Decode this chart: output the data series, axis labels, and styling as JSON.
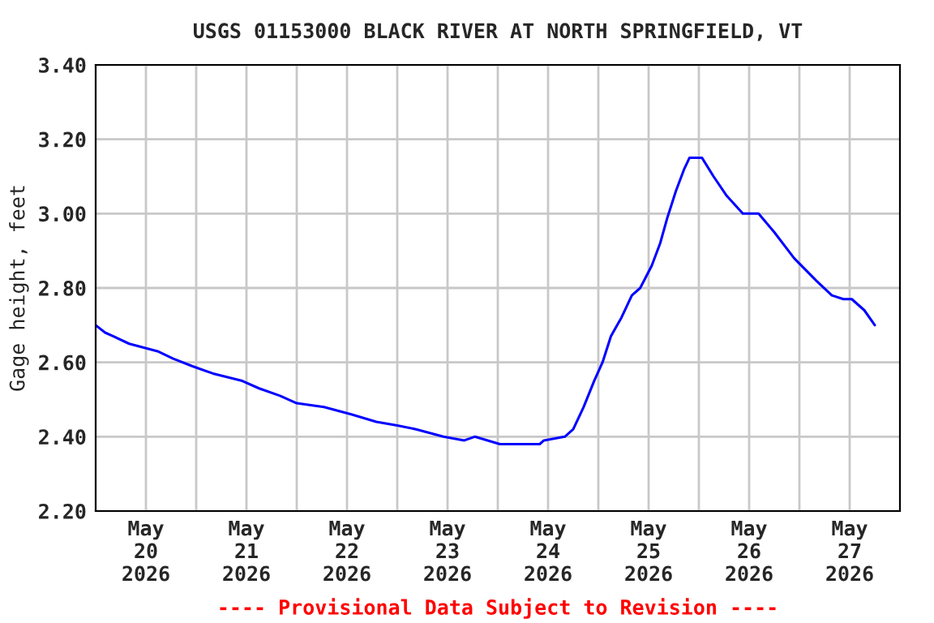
{
  "chart_data": {
    "type": "line",
    "title": "USGS 01153000 BLACK RIVER AT NORTH SPRINGFIELD, VT",
    "ylabel": "Gage height, feet",
    "annotations": [
      "---- Provisional Data Subject to Revision ----"
    ],
    "x": [
      "2026-05-20T00:00",
      "2026-05-20T02:15",
      "2026-05-20T04:15",
      "2026-05-20T08:00",
      "2026-05-20T14:45",
      "2026-05-20T18:30",
      "2026-05-20T23:00",
      "2026-05-21T04:00",
      "2026-05-21T11:00",
      "2026-05-21T15:00",
      "2026-05-21T20:00",
      "2026-05-22T00:00",
      "2026-05-22T06:30",
      "2026-05-22T13:00",
      "2026-05-22T19:00",
      "2026-05-23T00:00",
      "2026-05-23T04:30",
      "2026-05-23T11:00",
      "2026-05-23T16:00",
      "2026-05-23T18:30",
      "2026-05-24T00:30",
      "2026-05-24T10:00",
      "2026-05-24T11:00",
      "2026-05-24T16:00",
      "2026-05-24T18:00",
      "2026-05-24T20:30",
      "2026-05-24T23:00",
      "2026-05-25T01:00",
      "2026-05-25T03:00",
      "2026-05-25T05:30",
      "2026-05-25T08:00",
      "2026-05-25T10:00",
      "2026-05-25T12:45",
      "2026-05-25T14:45",
      "2026-05-25T16:30",
      "2026-05-25T18:30",
      "2026-05-25T20:30",
      "2026-05-25T21:45",
      "2026-05-26T00:45",
      "2026-05-26T03:30",
      "2026-05-26T06:30",
      "2026-05-26T10:30",
      "2026-05-26T14:15",
      "2026-05-26T18:00",
      "2026-05-26T22:45",
      "2026-05-27T04:00",
      "2026-05-27T07:45",
      "2026-05-27T10:30",
      "2026-05-27T12:30",
      "2026-05-27T15:30",
      "2026-05-27T18:00"
    ],
    "series": [
      {
        "color": "#0000ff",
        "values": [
          2.7,
          2.68,
          2.67,
          2.65,
          2.63,
          2.61,
          2.59,
          2.57,
          2.55,
          2.53,
          2.51,
          2.49,
          2.48,
          2.46,
          2.44,
          2.43,
          2.42,
          2.4,
          2.39,
          2.4,
          2.38,
          2.38,
          2.39,
          2.4,
          2.42,
          2.48,
          2.55,
          2.6,
          2.67,
          2.72,
          2.78,
          2.8,
          2.86,
          2.92,
          2.99,
          3.06,
          3.12,
          3.15,
          3.15,
          3.1,
          3.05,
          3.0,
          3.0,
          2.95,
          2.88,
          2.82,
          2.78,
          2.77,
          2.77,
          2.74,
          2.7
        ]
      }
    ],
    "xlim": [
      "2026-05-20T00:00",
      "2026-05-28T00:00"
    ],
    "xticks": [
      {
        "value": "2026-05-20T12:00",
        "label": "May\n20\n2026"
      },
      {
        "value": "2026-05-21T00:00",
        "label": null
      },
      {
        "value": "2026-05-21T12:00",
        "label": "May\n21\n2026"
      },
      {
        "value": "2026-05-22T00:00",
        "label": null
      },
      {
        "value": "2026-05-22T12:00",
        "label": "May\n22\n2026"
      },
      {
        "value": "2026-05-23T00:00",
        "label": null
      },
      {
        "value": "2026-05-23T12:00",
        "label": "May\n23\n2026"
      },
      {
        "value": "2026-05-24T00:00",
        "label": null
      },
      {
        "value": "2026-05-24T12:00",
        "label": "May\n24\n2026"
      },
      {
        "value": "2026-05-25T00:00",
        "label": null
      },
      {
        "value": "2026-05-25T12:00",
        "label": "May\n25\n2026"
      },
      {
        "value": "2026-05-26T00:00",
        "label": null
      },
      {
        "value": "2026-05-26T12:00",
        "label": "May\n26\n2026"
      },
      {
        "value": "2026-05-27T00:00",
        "label": null
      },
      {
        "value": "2026-05-27T12:00",
        "label": "May\n27\n2026"
      }
    ],
    "ylim": [
      2.2,
      3.4
    ],
    "yticks": [
      {
        "value": 2.2,
        "label": "2.20"
      },
      {
        "value": 2.4,
        "label": "2.40"
      },
      {
        "value": 2.6,
        "label": "2.60"
      },
      {
        "value": 2.8,
        "label": "2.80"
      },
      {
        "value": 3.0,
        "label": "3.00"
      },
      {
        "value": 3.2,
        "label": "3.20"
      },
      {
        "value": 3.4,
        "label": "3.40"
      }
    ],
    "grid": true,
    "legend": false,
    "marker": "none",
    "line_style": "solid"
  }
}
